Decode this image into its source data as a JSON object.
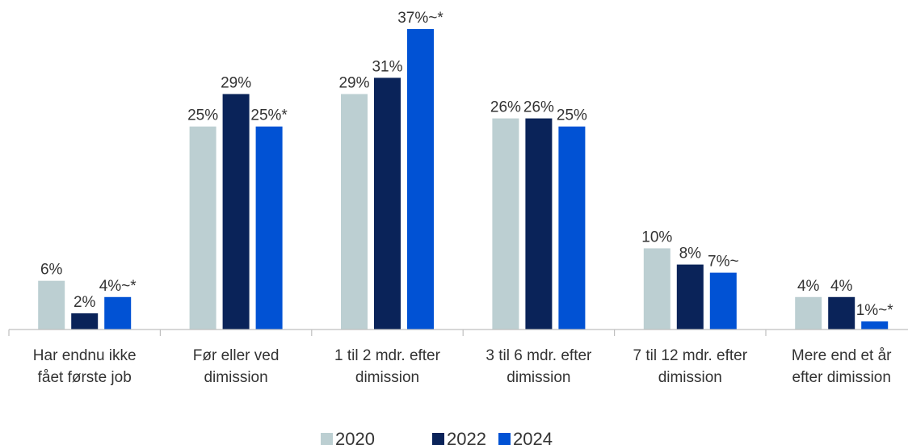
{
  "chart_data": {
    "type": "bar",
    "categories": [
      [
        "Har endnu ikke",
        "fået første job"
      ],
      [
        "Før eller ved",
        "dimission"
      ],
      [
        "1 til 2 mdr. efter",
        "dimission"
      ],
      [
        "3 til 6 mdr. efter",
        "dimission"
      ],
      [
        "7 til 12 mdr. efter",
        "dimission"
      ],
      [
        "Mere end et år",
        "efter dimission"
      ]
    ],
    "series": [
      {
        "name": "2020",
        "color": "#bccfd2",
        "values": [
          6,
          25,
          29,
          26,
          10,
          4
        ],
        "labels": [
          "6%",
          "25%",
          "29%",
          "26%",
          "10%",
          "4%"
        ]
      },
      {
        "name": "2022",
        "color": "#0a2359",
        "values": [
          2,
          29,
          31,
          26,
          8,
          4
        ],
        "labels": [
          "2%",
          "29%",
          "31%",
          "26%",
          "8%",
          "4%"
        ]
      },
      {
        "name": "2024",
        "color": "#0152d4",
        "values": [
          4,
          25,
          37,
          25,
          7,
          1
        ],
        "labels": [
          "4%~*",
          "25%*",
          "37%~*",
          "25%",
          "7%~",
          "1%~*"
        ]
      }
    ],
    "ylim": [
      0,
      40
    ],
    "grid": false,
    "legend": "bottom-center"
  }
}
